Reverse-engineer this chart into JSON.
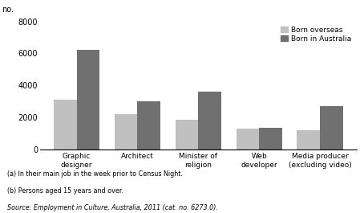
{
  "categories": [
    "Graphic\ndesigner",
    "Architect",
    "Minister of\nreligion",
    "Web\ndeveloper",
    "Media producer\n(excluding video)"
  ],
  "born_overseas": [
    3100,
    2200,
    1850,
    1300,
    1200
  ],
  "born_australia": [
    6200,
    3000,
    3600,
    1350,
    2700
  ],
  "color_overseas": "#c0c0c0",
  "color_australia": "#707070",
  "ylim": [
    0,
    8000
  ],
  "yticks": [
    0,
    2000,
    4000,
    6000,
    8000
  ],
  "legend_overseas": "Born overseas",
  "legend_australia": "Born in Australia",
  "footnote1": "(a) In their main job in the week prior to Census Night.",
  "footnote2": "(b) Persons aged 15 years and over.",
  "source": "Source: Employment in Culture, Australia, 2011 (cat. no. 6273.0).",
  "bar_width": 0.38,
  "fig_width": 4.54,
  "fig_height": 2.65,
  "dpi": 100
}
